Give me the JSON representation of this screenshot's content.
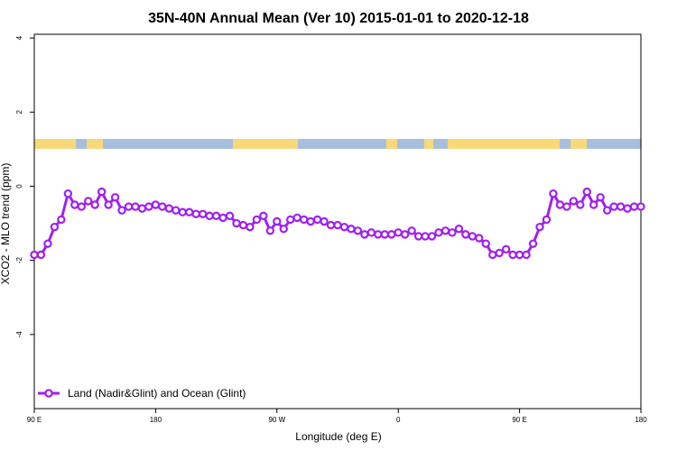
{
  "chart_data": {
    "type": "line",
    "title": "35N-40N Annual Mean (Ver 10)   2015-01-01 to 2020-12-18",
    "x_label": "Longitude (deg E)",
    "y_label": "XCO2 - MLO trend (ppm)",
    "x": [
      90,
      95,
      100,
      105,
      110,
      115,
      120,
      125,
      130,
      135,
      140,
      145,
      150,
      155,
      160,
      165,
      170,
      175,
      180,
      185,
      190,
      195,
      200,
      205,
      210,
      215,
      220,
      225,
      230,
      235,
      240,
      245,
      250,
      255,
      260,
      265,
      270,
      275,
      280,
      285,
      290,
      295,
      300,
      305,
      310,
      315,
      320,
      325,
      330,
      335,
      340,
      345,
      350,
      355,
      360,
      365,
      370,
      375,
      380,
      385,
      390,
      395,
      400,
      405,
      410,
      415,
      420,
      425,
      430,
      435,
      440,
      445,
      450,
      455,
      460,
      465,
      470,
      475,
      480,
      485,
      490,
      495,
      500,
      505,
      510,
      515,
      520,
      525,
      530,
      535,
      540
    ],
    "series": [
      {
        "name": "Land (Nadir&Glint) and Ocean (Glint)",
        "color": "#a020f0",
        "values": [
          -1.85,
          -1.85,
          -1.55,
          -1.1,
          -0.9,
          -0.2,
          -0.5,
          -0.55,
          -0.4,
          -0.5,
          -0.15,
          -0.5,
          -0.3,
          -0.65,
          -0.55,
          -0.55,
          -0.6,
          -0.55,
          -0.5,
          -0.55,
          -0.6,
          -0.65,
          -0.7,
          -0.7,
          -0.75,
          -0.75,
          -0.8,
          -0.8,
          -0.85,
          -0.8,
          -1.0,
          -1.05,
          -1.1,
          -0.9,
          -0.8,
          -1.2,
          -0.95,
          -1.15,
          -0.9,
          -0.85,
          -0.9,
          -0.95,
          -0.9,
          -0.95,
          -1.05,
          -1.05,
          -1.1,
          -1.15,
          -1.2,
          -1.3,
          -1.25,
          -1.3,
          -1.3,
          -1.3,
          -1.25,
          -1.3,
          -1.2,
          -1.35,
          -1.35,
          -1.35,
          -1.25,
          -1.2,
          -1.25,
          -1.15,
          -1.3,
          -1.35,
          -1.4,
          -1.55,
          -1.85,
          -1.8,
          -1.7,
          -1.85,
          -1.85,
          -1.85,
          -1.55,
          -1.1,
          -0.9,
          -0.2,
          -0.5,
          -0.55,
          -0.4,
          -0.5,
          -0.15,
          -0.5,
          -0.3,
          -0.65,
          -0.55,
          -0.55,
          -0.6,
          -0.55,
          -0.55
        ]
      }
    ],
    "xlim": [
      90,
      540
    ],
    "xticks": [
      {
        "value": 90,
        "label": "90 E"
      },
      180,
      {
        "value": 270,
        "label": "90 W"
      },
      {
        "value": 360,
        "label": "0"
      },
      {
        "value": 450,
        "label": "90 E"
      },
      {
        "value": 540,
        "label": "180"
      }
    ],
    "ylim": [
      -6,
      4.1
    ],
    "yticks": [
      -4,
      -2,
      0,
      2,
      4
    ],
    "legend_position": "bottom-left"
  }
}
